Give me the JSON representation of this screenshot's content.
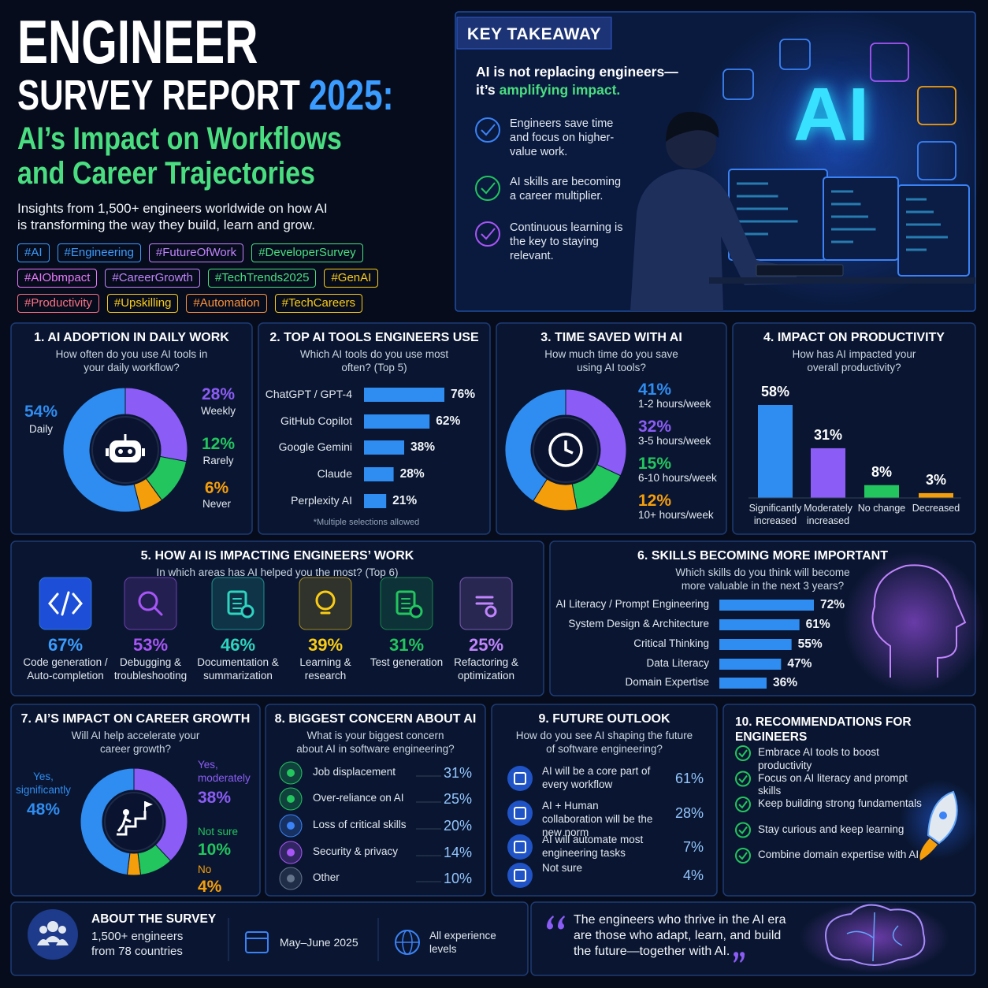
{
  "header": {
    "title_line1": "ENGINEER",
    "title_line2": "SURVEY REPORT",
    "title_year": "2025:",
    "subtitle": "AI’s Impact on Workflows and Career Trajectories",
    "intro": "Insights from 1,500+ engineers worldwide on how AI is transforming the way they build, learn and grow.",
    "tags": [
      [
        {
          "text": "#AI",
          "color": "#3b9cff"
        },
        {
          "text": "#Engineering",
          "color": "#3b9cff"
        },
        {
          "text": "#FutureOfWork",
          "color": "#c084fc"
        },
        {
          "text": "#DeveloperSurvey",
          "color": "#4ade80"
        }
      ],
      [
        {
          "text": "#AIObmpact",
          "color": "#e879f9"
        },
        {
          "text": "#CareerGrowth",
          "color": "#c084fc"
        },
        {
          "text": "#TechTrends2025",
          "color": "#4ade80"
        },
        {
          "text": "#GenAI",
          "color": "#facc15"
        }
      ],
      [
        {
          "text": "#Productivity",
          "color": "#fb7185"
        },
        {
          "text": "#Upskilling",
          "color": "#facc15"
        },
        {
          "text": "#Automation",
          "color": "#fb923c"
        },
        {
          "text": "#TechCareers",
          "color": "#facc15"
        }
      ]
    ]
  },
  "takeaway": {
    "label": "KEY TAKEAWAY",
    "headline": "AI is not replacing engineers—it’s",
    "headline_highlight": "amplifying impact.",
    "points": [
      "Engineers save time and focus on higher-value work.",
      "AI skills are becoming a career multiplier.",
      "Continuous learning is the key to staying relevant."
    ],
    "image_text": "AI"
  },
  "chart_data": [
    {
      "type": "donut",
      "title": "1. AI ADOPTION IN DAILY WORK",
      "subtitle": "How often do you use AI tools in your daily workflow?",
      "categories": [
        "Daily",
        "Weekly",
        "Rarely",
        "Never"
      ],
      "values": [
        54,
        28,
        12,
        6
      ],
      "value_labels": [
        "54%",
        "28%",
        "12%",
        "6%"
      ],
      "colors": [
        "#2f8cf0",
        "#8b5cf6",
        "#22c55e",
        "#f59e0b"
      ]
    },
    {
      "type": "hbar",
      "title": "2. TOP AI TOOLS ENGINEERS USE",
      "subtitle": "Which AI tools do you use most often? (Top 5)",
      "categories": [
        "ChatGPT / GPT-4",
        "GitHub Copilot",
        "Google Gemini",
        "Claude",
        "Perplexity AI"
      ],
      "values": [
        76,
        62,
        38,
        28,
        21
      ],
      "value_labels": [
        "76%",
        "62%",
        "38%",
        "28%",
        "21%"
      ],
      "color": "#2f8cf0",
      "note": "*Multiple selections allowed"
    },
    {
      "type": "donut",
      "title": "3. TIME SAVED WITH AI",
      "subtitle": "How much time do you save using AI tools?",
      "categories": [
        "1-2 hours/week",
        "3-5 hours/week",
        "6-10 hours/week",
        "10+ hours/week"
      ],
      "values": [
        41,
        32,
        15,
        12
      ],
      "value_labels": [
        "41%",
        "32%",
        "15%",
        "12%"
      ],
      "colors": [
        "#2f8cf0",
        "#8b5cf6",
        "#22c55e",
        "#f59e0b"
      ]
    },
    {
      "type": "bar",
      "title": "4. IMPACT ON PRODUCTIVITY",
      "subtitle": "How has AI impacted your overall productivity?",
      "categories": [
        "Significantly increased",
        "Moderately increased",
        "No change",
        "Decreased"
      ],
      "values": [
        58,
        31,
        8,
        3
      ],
      "value_labels": [
        "58%",
        "31%",
        "8%",
        "3%"
      ],
      "colors": [
        "#2f8cf0",
        "#8b5cf6",
        "#22c55e",
        "#f59e0b"
      ]
    },
    {
      "type": "stats",
      "title": "5. HOW AI IS IMPACTING ENGINEERS’ WORK",
      "subtitle": "In which areas has AI helped you the most? (Top 6)",
      "categories": [
        "Code generation / Auto-completion",
        "Debugging & troubleshooting",
        "Documentation & summarization",
        "Learning & research",
        "Test generation",
        "Refactoring & optimization"
      ],
      "values": [
        67,
        53,
        46,
        39,
        31,
        25
      ],
      "value_labels": [
        "67%",
        "53%",
        "46%",
        "39%",
        "31%",
        "25%"
      ],
      "colors": [
        "#3b9cff",
        "#a855f7",
        "#2dd4bf",
        "#facc15",
        "#22c55e",
        "#c084fc"
      ]
    },
    {
      "type": "hbar",
      "title": "6. SKILLS BECOMING MORE IMPORTANT",
      "subtitle": "Which skills do you think will become more valuable in the next 3 years?",
      "categories": [
        "AI Literacy / Prompt Engineering",
        "System Design & Architecture",
        "Critical Thinking",
        "Data Literacy",
        "Domain Expertise"
      ],
      "values": [
        72,
        61,
        55,
        47,
        36
      ],
      "value_labels": [
        "72%",
        "61%",
        "55%",
        "47%",
        "36%"
      ],
      "color": "#2f8cf0"
    },
    {
      "type": "donut",
      "title": "7. AI’S IMPACT ON CAREER GROWTH",
      "subtitle": "Will AI help accelerate your career growth?",
      "categories": [
        "Yes, significantly",
        "Yes, moderately",
        "Not sure",
        "No"
      ],
      "values": [
        48,
        38,
        10,
        4
      ],
      "value_labels": [
        "48%",
        "38%",
        "10%",
        "4%"
      ],
      "colors": [
        "#2f8cf0",
        "#8b5cf6",
        "#22c55e",
        "#f59e0b"
      ]
    },
    {
      "type": "list",
      "title": "8. BIGGEST CONCERN ABOUT AI",
      "subtitle": "What is your biggest concern about AI in software engineering?",
      "categories": [
        "Job displacement",
        "Over-reliance on AI",
        "Loss of critical skills",
        "Security & privacy",
        "Other"
      ],
      "values": [
        31,
        25,
        20,
        14,
        10
      ],
      "value_labels": [
        "31%",
        "25%",
        "20%",
        "14%",
        "10%"
      ]
    },
    {
      "type": "list",
      "title": "9. FUTURE OUTLOOK",
      "subtitle": "How do you see AI shaping the future of software engineering?",
      "categories": [
        "AI will be a core part of every workflow",
        "AI + Human collaboration will be the new norm",
        "AI will automate most engineering tasks",
        "Not sure"
      ],
      "values": [
        61,
        28,
        7,
        4
      ],
      "value_labels": [
        "61%",
        "28%",
        "7%",
        "4%"
      ]
    }
  ],
  "recommendations": {
    "title": "10. RECOMMENDATIONS FOR ENGINEERS",
    "items": [
      "Embrace AI tools to boost productivity",
      "Focus on AI literacy and prompt skills",
      "Keep building strong fundamentals",
      "Stay curious and keep learning",
      "Combine domain expertise with AI"
    ]
  },
  "about": {
    "title": "ABOUT THE SURVEY",
    "respondents": "1,500+ engineers from 78 countries",
    "dates": "May–June 2025",
    "levels": "All experience levels",
    "quote": "The engineers who thrive in the AI era are those who adapt, learn, and build the future—together with AI."
  }
}
